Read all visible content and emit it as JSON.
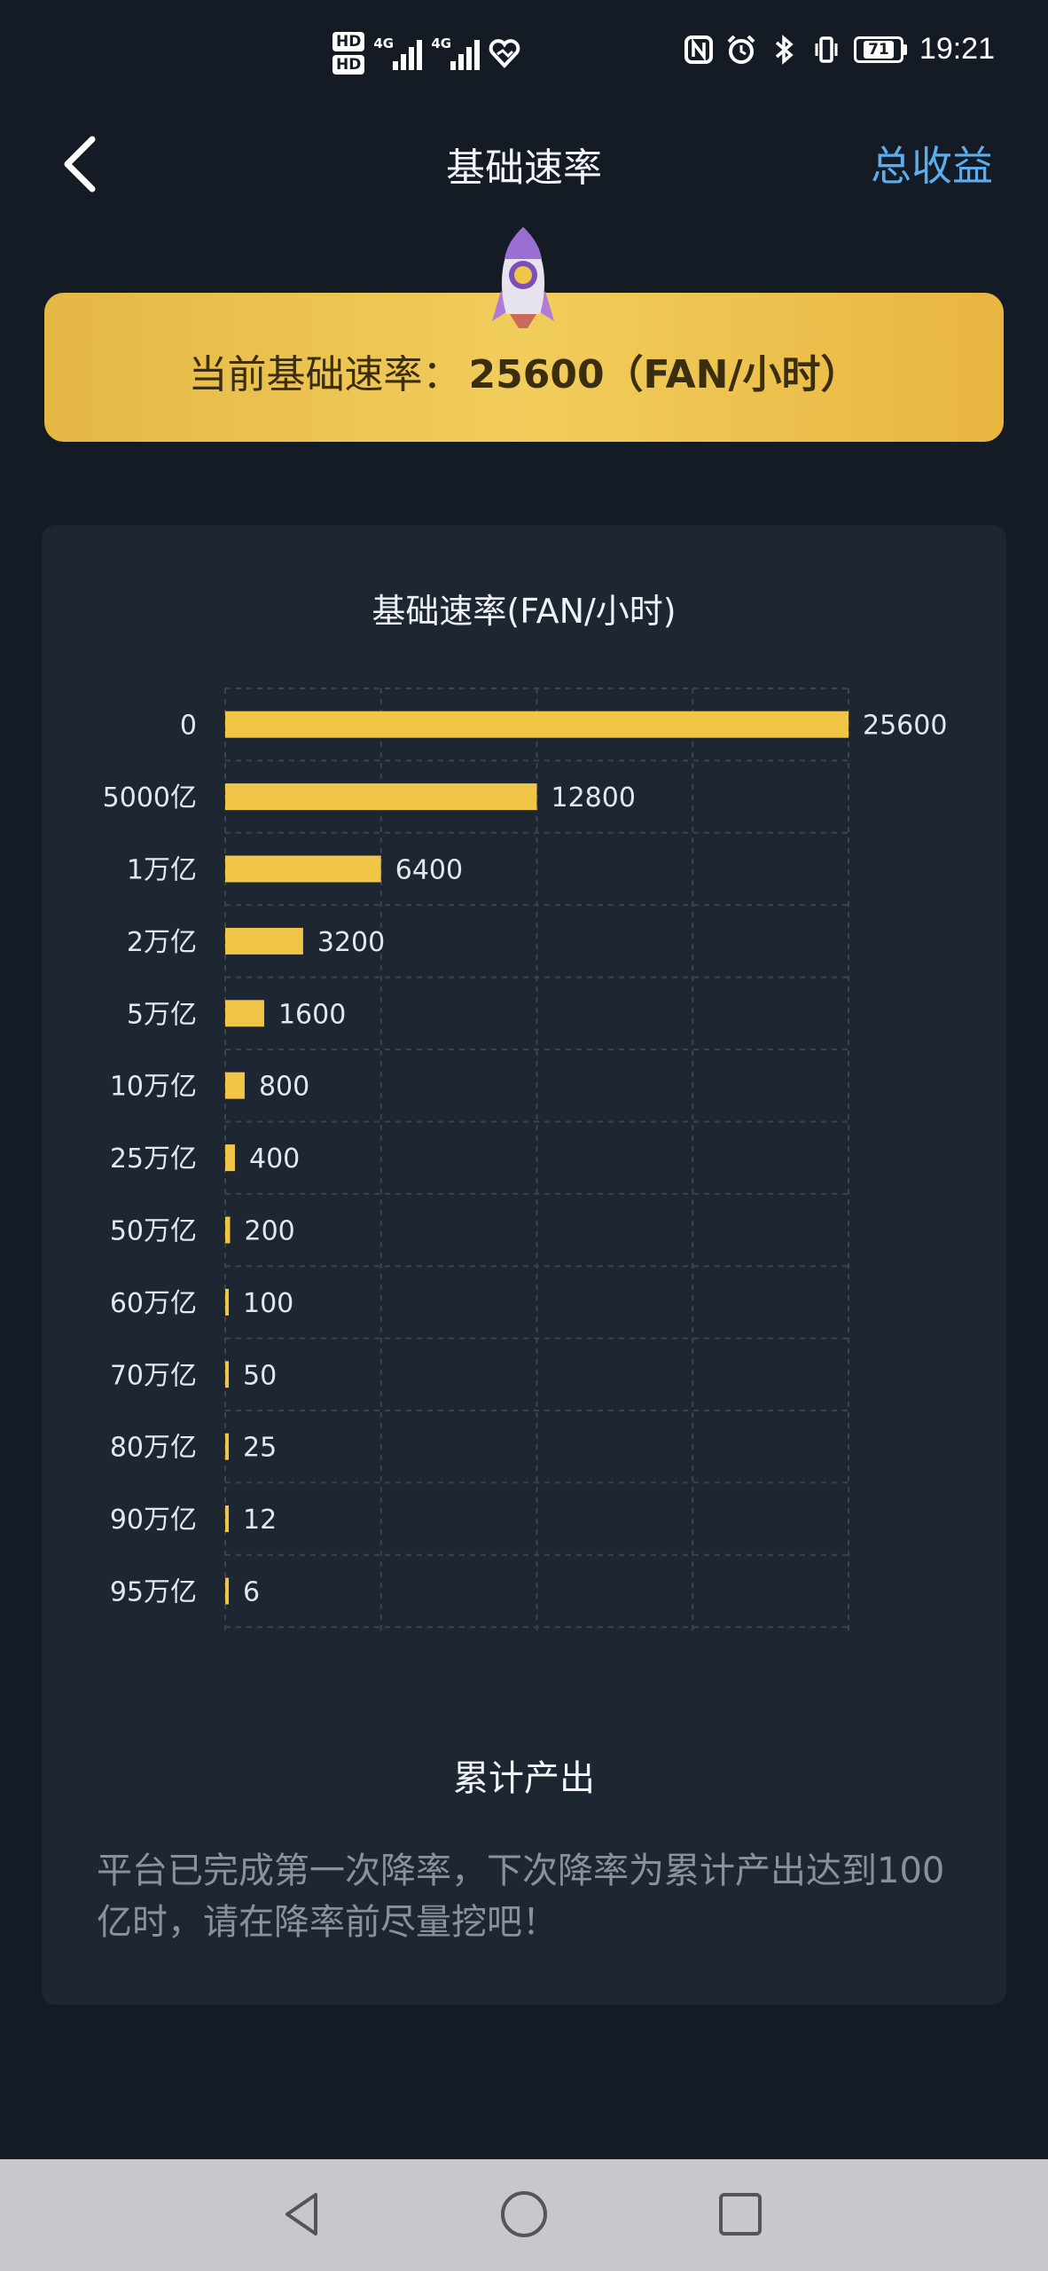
{
  "status_bar": {
    "hd1": "HD",
    "hd2": "HD",
    "net1": "4G",
    "net2": "4G",
    "battery": "71",
    "time": "19:21"
  },
  "header": {
    "title": "基础速率",
    "total_link": "总收益"
  },
  "banner": {
    "label": "当前基础速率：",
    "value": "25600（FAN/小时）"
  },
  "chart_data": {
    "type": "bar",
    "orientation": "horizontal",
    "title": "基础速率(FAN/小时)",
    "categories": [
      "0",
      "5000亿",
      "1万亿",
      "2万亿",
      "5万亿",
      "10万亿",
      "25万亿",
      "50万亿",
      "60万亿",
      "70万亿",
      "80万亿",
      "90万亿",
      "95万亿"
    ],
    "values": [
      25600,
      12800,
      6400,
      3200,
      1600,
      800,
      400,
      200,
      100,
      50,
      25,
      12,
      6
    ],
    "value_labels": [
      "25600",
      "12800",
      "6400",
      "3200",
      "1600",
      "800",
      "400",
      "200",
      "100",
      "50",
      "25",
      "12",
      "6"
    ],
    "xlim": [
      0,
      25600
    ],
    "grid": true,
    "bar_color": "#f0c548",
    "xlabel": "累计产出"
  },
  "note": "平台已完成第一次降率，下次降率为累计产出达到100亿时，请在降率前尽量挖吧！",
  "nav": {
    "back_icon": "triangle-back-icon",
    "home_icon": "circle-home-icon",
    "recent_icon": "square-recent-icon"
  }
}
